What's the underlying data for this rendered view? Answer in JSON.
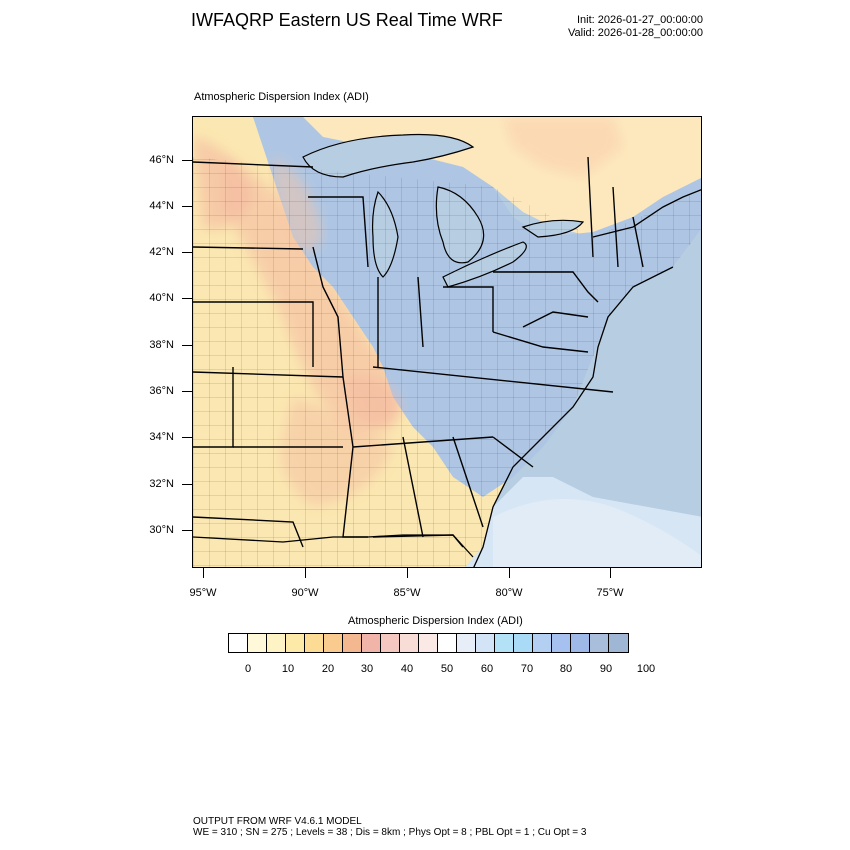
{
  "title": "IWFAQRP Eastern US Real Time WRF",
  "init_line": "Init: 2026-01-27_00:00:00",
  "valid_line": "Valid: 2026-01-28_00:00:00",
  "field_title": "Atmospheric Dispersion Index   (ADI)",
  "map": {
    "lat_labels": [
      "46°N",
      "44°N",
      "42°N",
      "40°N",
      "38°N",
      "36°N",
      "34°N",
      "32°N",
      "30°N"
    ],
    "lon_labels": [
      "95°W",
      "90°W",
      "85°W",
      "80°W",
      "75°W"
    ],
    "colors": {
      "ocean": "#b7cde2",
      "high_adi": "#aec6e4",
      "low_adi": "#fbe7b1",
      "mid_adi": "#f6c5a5",
      "canada": "#fde8bd"
    }
  },
  "colorbar": {
    "title": "Atmospheric Dispersion Index  (ADI)",
    "colors": [
      "#ffffff",
      "#fff8d9",
      "#fef3c4",
      "#fde9a8",
      "#fcdc95",
      "#f9cb8f",
      "#f4b890",
      "#f0b4a8",
      "#f4c8c0",
      "#f8dcd6",
      "#fbe9e6",
      "#ffffff",
      "#e8eef8",
      "#d3e4f6",
      "#b3e2f7",
      "#a9daf6",
      "#b3d0f2",
      "#a6c1ef",
      "#9eb9e7",
      "#a9bedb",
      "#9fb7d4"
    ],
    "labels": [
      "0",
      "10",
      "20",
      "30",
      "40",
      "50",
      "60",
      "70",
      "80",
      "90",
      "100"
    ]
  },
  "footer": {
    "line1": "OUTPUT FROM WRF V4.6.1 MODEL",
    "line2": "WE = 310 ; SN = 275 ; Levels = 38 ; Dis = 8km ; Phys Opt = 8 ; PBL Opt = 1 ; Cu Opt = 3"
  }
}
